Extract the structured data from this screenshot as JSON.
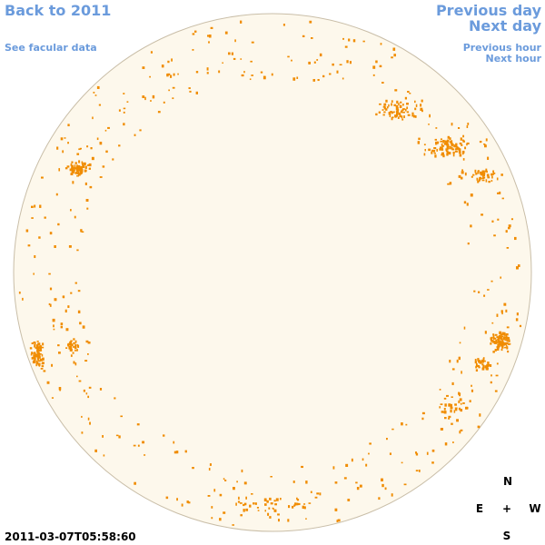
{
  "nav": {
    "back": "Back to 2011",
    "facular": "See facular data",
    "previous_day": "Previous day",
    "next_day": "Next day",
    "previous_hour": "Previous hour",
    "next_hour": "Next hour"
  },
  "compass": {
    "north": "N",
    "east": "E",
    "center": "+",
    "west": "W",
    "south": "S"
  },
  "timestamp": "2011-03-07T05:58:60"
}
